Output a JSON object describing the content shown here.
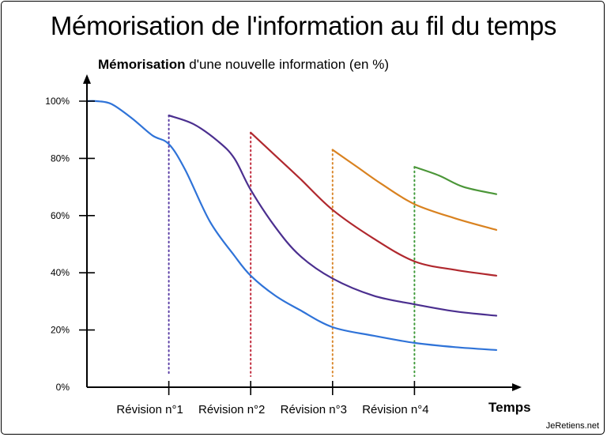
{
  "title": "Mémorisation de l'information au fil du temps",
  "y_axis": {
    "bold": "Mémorisation",
    "rest": " d'une nouvelle information (en %)"
  },
  "credit": "JeRetiens.net",
  "chart_data": {
    "type": "line",
    "title": "Mémorisation de l'information au fil du temps",
    "xlabel": "Temps",
    "ylabel": "Mémorisation d'une nouvelle information (en %)",
    "ylim": [
      0,
      100
    ],
    "yticks": [
      "0%",
      "20%",
      "40%",
      "60%",
      "80%",
      "100%"
    ],
    "ytick_values": [
      0,
      20,
      40,
      60,
      80,
      100
    ],
    "xlim": [
      0,
      5
    ],
    "revisions": [
      {
        "label": "Révision n°1",
        "x": 1,
        "color": "#5b3fa6"
      },
      {
        "label": "Révision n°2",
        "x": 2,
        "color": "#c0283a"
      },
      {
        "label": "Révision n°3",
        "x": 3,
        "color": "#d9862a"
      },
      {
        "label": "Révision n°4",
        "x": 4,
        "color": "#3f9a3a"
      }
    ],
    "grid": false,
    "series": [
      {
        "color": "#2f73d8",
        "points": [
          [
            0,
            100
          ],
          [
            0.12,
            100
          ],
          [
            0.3,
            99
          ],
          [
            0.55,
            94
          ],
          [
            0.8,
            88
          ],
          [
            1,
            85
          ],
          [
            1.2,
            76
          ],
          [
            1.5,
            58
          ],
          [
            1.8,
            46
          ],
          [
            2,
            39
          ],
          [
            2.3,
            32
          ],
          [
            2.6,
            27
          ],
          [
            3,
            21
          ],
          [
            3.5,
            18
          ],
          [
            4,
            15.5
          ],
          [
            4.5,
            14
          ],
          [
            5,
            13
          ]
        ]
      },
      {
        "color": "#4b2f8f",
        "points": [
          [
            1,
            95
          ],
          [
            1.3,
            92
          ],
          [
            1.6,
            86
          ],
          [
            1.8,
            80
          ],
          [
            2,
            69
          ],
          [
            2.3,
            56
          ],
          [
            2.6,
            46
          ],
          [
            3,
            38
          ],
          [
            3.5,
            32
          ],
          [
            4,
            29
          ],
          [
            4.5,
            26.5
          ],
          [
            5,
            25
          ]
        ]
      },
      {
        "color": "#b0282e",
        "points": [
          [
            2,
            89
          ],
          [
            2.3,
            81
          ],
          [
            2.6,
            73
          ],
          [
            3,
            62
          ],
          [
            3.5,
            52
          ],
          [
            4,
            44
          ],
          [
            4.5,
            41
          ],
          [
            5,
            39
          ]
        ]
      },
      {
        "color": "#d98220",
        "points": [
          [
            3,
            83
          ],
          [
            3.3,
            77
          ],
          [
            3.6,
            71
          ],
          [
            4,
            64
          ],
          [
            4.5,
            59
          ],
          [
            5,
            55
          ]
        ]
      },
      {
        "color": "#4b9638",
        "points": [
          [
            4,
            77
          ],
          [
            4.3,
            74
          ],
          [
            4.6,
            70
          ],
          [
            5,
            67.5
          ]
        ]
      }
    ]
  }
}
